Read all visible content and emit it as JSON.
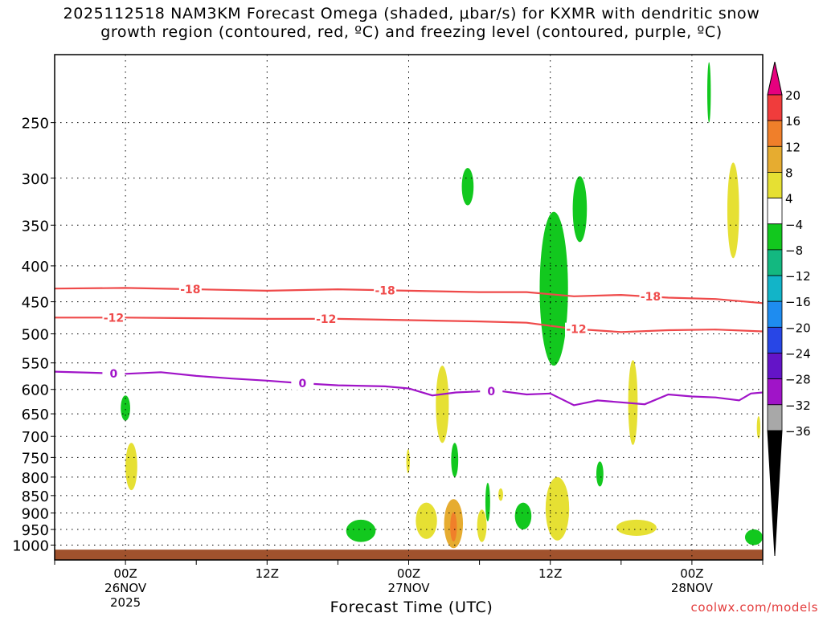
{
  "title_lines": [
    "2025112518 NAM3KM Forecast Omega (shaded, μbar/s) for KXMR with dendritic snow",
    "growth region (contoured, red, ºC) and freezing level (contoured, purple, ºC)"
  ],
  "credit": "coolwx.com/models",
  "chart_data": {
    "type": "heatmap",
    "title": "2025112518 NAM3KM Forecast Omega (shaded, μbar/s) for KXMR with dendritic snow growth region (contoured, red, ºC) and freezing level (contoured, purple, ºC)",
    "xlabel": "Forecast Time (UTC)",
    "ylabel": "",
    "x_unit": "forecast hour from 2025-11-25 18Z",
    "xlim": [
      0,
      60
    ],
    "ylim": [
      1050,
      200
    ],
    "y_scale": "log-pressure",
    "grid": true,
    "y_ticks": [
      250,
      300,
      350,
      400,
      450,
      500,
      550,
      600,
      650,
      700,
      750,
      800,
      850,
      900,
      950,
      1000
    ],
    "x_ticks": [
      {
        "hour": 6,
        "lines": [
          "00Z",
          "26NOV",
          "2025"
        ]
      },
      {
        "hour": 18,
        "lines": [
          "12Z"
        ]
      },
      {
        "hour": 30,
        "lines": [
          "00Z",
          "27NOV"
        ]
      },
      {
        "hour": 42,
        "lines": [
          "12Z"
        ]
      },
      {
        "hour": 54,
        "lines": [
          "00Z",
          "28NOV"
        ]
      }
    ],
    "colorbar": {
      "labels": [
        "20",
        "16",
        "12",
        "8",
        "4",
        "−4",
        "−8",
        "−12",
        "−16",
        "−20",
        "−24",
        "−28",
        "−32",
        "−36"
      ],
      "colors": [
        "#e6007e",
        "#f03c3c",
        "#f07f2a",
        "#e6ac30",
        "#e6e033",
        "#ffffff",
        "#12c81e",
        "#13b880",
        "#12b4c8",
        "#1e8cf0",
        "#2846e6",
        "#6414c8",
        "#a014c8",
        "#a8a8a8",
        "#000000"
      ]
    },
    "series": [
      {
        "name": "-18",
        "kind": "dendritic",
        "color": "#ef4a4a",
        "points": [
          [
            0,
            431
          ],
          [
            6,
            430
          ],
          [
            12,
            432
          ],
          [
            18,
            434
          ],
          [
            24,
            432
          ],
          [
            30,
            434
          ],
          [
            36,
            436
          ],
          [
            40,
            436
          ],
          [
            44,
            442
          ],
          [
            48,
            440
          ],
          [
            52,
            444
          ],
          [
            56,
            446
          ],
          [
            60,
            452
          ]
        ],
        "labels": [
          [
            11.5,
            -18
          ],
          [
            28,
            -18
          ],
          [
            50.5,
            -18
          ]
        ]
      },
      {
        "name": "-12",
        "kind": "dendritic",
        "color": "#ef4a4a",
        "points": [
          [
            0,
            474
          ],
          [
            6,
            474
          ],
          [
            12,
            475
          ],
          [
            18,
            476
          ],
          [
            24,
            476
          ],
          [
            30,
            478
          ],
          [
            36,
            480
          ],
          [
            40,
            482
          ],
          [
            44,
            492
          ],
          [
            48,
            497
          ],
          [
            52,
            494
          ],
          [
            56,
            493
          ],
          [
            60,
            496
          ]
        ],
        "labels": [
          [
            5,
            -12
          ],
          [
            23,
            -12
          ],
          [
            44.2,
            -12
          ]
        ]
      },
      {
        "name": "0",
        "kind": "freezing",
        "color": "#a014c8",
        "points": [
          [
            0,
            566
          ],
          [
            3,
            568
          ],
          [
            6,
            570
          ],
          [
            9,
            567
          ],
          [
            12,
            574
          ],
          [
            15,
            579
          ],
          [
            18,
            583
          ],
          [
            21,
            588
          ],
          [
            24,
            592
          ],
          [
            28,
            594
          ],
          [
            30,
            598
          ],
          [
            32,
            612
          ],
          [
            34,
            606
          ],
          [
            36,
            604
          ],
          [
            38,
            604
          ],
          [
            40,
            610
          ],
          [
            42,
            608
          ],
          [
            44,
            632
          ],
          [
            46,
            622
          ],
          [
            48,
            626
          ],
          [
            50,
            630
          ],
          [
            52,
            610
          ],
          [
            54,
            614
          ],
          [
            56,
            616
          ],
          [
            58,
            622
          ],
          [
            59,
            608
          ],
          [
            60,
            606
          ]
        ],
        "labels": [
          [
            5,
            0
          ],
          [
            21,
            0
          ],
          [
            37,
            0
          ]
        ]
      }
    ],
    "omega_features": [
      {
        "kind": "upward",
        "value_range": [
          -8,
          -4
        ],
        "x": [
          5.6,
          6.4
        ],
        "p": [
          612,
          665
        ],
        "color": "#12c81e"
      },
      {
        "kind": "upward",
        "value_range": [
          -8,
          -4
        ],
        "x": [
          24.7,
          27.2
        ],
        "p": [
          920,
          990
        ],
        "color": "#12c81e"
      },
      {
        "kind": "upward",
        "value_range": [
          -8,
          -4
        ],
        "x": [
          34.5,
          35.5
        ],
        "p": [
          290,
          328
        ],
        "color": "#12c81e"
      },
      {
        "kind": "upward",
        "value_range": [
          -8,
          -4
        ],
        "x": [
          33.6,
          34.2
        ],
        "p": [
          715,
          800
        ],
        "color": "#12c81e"
      },
      {
        "kind": "upward",
        "value_range": [
          -8,
          -4
        ],
        "x": [
          41.1,
          43.5
        ],
        "p": [
          335,
          555
        ],
        "color": "#12c81e"
      },
      {
        "kind": "upward",
        "value_range": [
          -8,
          -4
        ],
        "x": [
          43.9,
          45.1
        ],
        "p": [
          298,
          370
        ],
        "color": "#12c81e"
      },
      {
        "kind": "upward",
        "value_range": [
          -8,
          -4
        ],
        "x": [
          36.5,
          36.9
        ],
        "p": [
          815,
          925
        ],
        "color": "#12c81e"
      },
      {
        "kind": "upward",
        "value_range": [
          -8,
          -4
        ],
        "x": [
          39.0,
          40.4
        ],
        "p": [
          870,
          950
        ],
        "color": "#12c81e"
      },
      {
        "kind": "upward",
        "value_range": [
          -8,
          -4
        ],
        "x": [
          45.9,
          46.5
        ],
        "p": [
          760,
          825
        ],
        "color": "#12c81e"
      },
      {
        "kind": "upward",
        "value_range": [
          -8,
          -4
        ],
        "x": [
          55.3,
          55.6
        ],
        "p": [
          205,
          250
        ],
        "color": "#12c81e"
      },
      {
        "kind": "upward",
        "value_range": [
          -8,
          -4
        ],
        "x": [
          58.5,
          60
        ],
        "p": [
          950,
          1000
        ],
        "color": "#12c81e"
      },
      {
        "kind": "downward",
        "value_range": [
          4,
          8
        ],
        "x": [
          6.0,
          7.0
        ],
        "p": [
          715,
          835
        ],
        "color": "#e6e033"
      },
      {
        "kind": "downward",
        "value_range": [
          4,
          8
        ],
        "x": [
          32.3,
          33.4
        ],
        "p": [
          555,
          715
        ],
        "color": "#e6e033"
      },
      {
        "kind": "downward",
        "value_range": [
          4,
          8
        ],
        "x": [
          30.6,
          32.4
        ],
        "p": [
          870,
          980
        ],
        "color": "#e6e033"
      },
      {
        "kind": "downward",
        "value_range": [
          4,
          12
        ],
        "x": [
          33.0,
          34.6
        ],
        "p": [
          860,
          1010
        ],
        "color": "#e6ac30"
      },
      {
        "kind": "downward",
        "value_range": [
          4,
          8
        ],
        "x": [
          35.8,
          36.6
        ],
        "p": [
          890,
          990
        ],
        "color": "#e6e033"
      },
      {
        "kind": "downward",
        "value_range": [
          4,
          8
        ],
        "x": [
          37.6,
          38.0
        ],
        "p": [
          830,
          865
        ],
        "color": "#e6e033"
      },
      {
        "kind": "downward",
        "value_range": [
          4,
          8
        ],
        "x": [
          41.6,
          43.6
        ],
        "p": [
          800,
          985
        ],
        "color": "#e6e033"
      },
      {
        "kind": "downward",
        "value_range": [
          4,
          8
        ],
        "x": [
          48.6,
          49.4
        ],
        "p": [
          545,
          720
        ],
        "color": "#e6e033"
      },
      {
        "kind": "downward",
        "value_range": [
          4,
          8
        ],
        "x": [
          47.6,
          51.0
        ],
        "p": [
          920,
          970
        ],
        "color": "#e6e033"
      },
      {
        "kind": "downward",
        "value_range": [
          4,
          8
        ],
        "x": [
          57.0,
          58.0
        ],
        "p": [
          285,
          390
        ],
        "color": "#e6e033"
      },
      {
        "kind": "downward",
        "value_range": [
          4,
          8
        ],
        "x": [
          29.8,
          30.1
        ],
        "p": [
          730,
          790
        ],
        "color": "#e6e033"
      },
      {
        "kind": "downward",
        "value_range": [
          4,
          8
        ],
        "x": [
          59.5,
          59.8
        ],
        "p": [
          655,
          705
        ],
        "color": "#e6e033"
      }
    ],
    "terrain": {
      "color": "#a0522d",
      "surface_p": 1015
    }
  }
}
